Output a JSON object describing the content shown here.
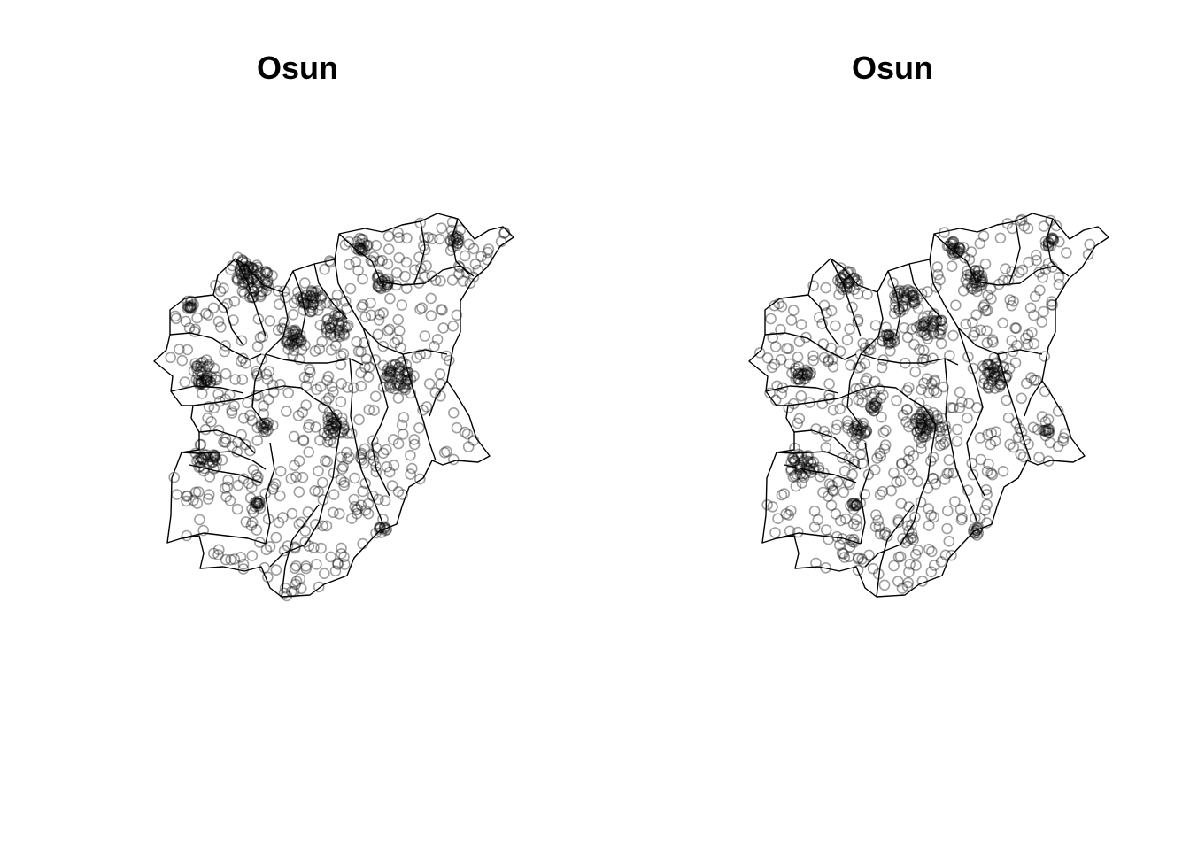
{
  "maps": [
    {
      "title": "Osun",
      "clusters": [
        [
          286,
          315,
          16,
          22
        ],
        [
          272,
          300,
          6,
          10
        ],
        [
          232,
          420,
          12,
          16
        ],
        [
          234,
          522,
          8,
          12
        ],
        [
          352,
          340,
          10,
          14
        ],
        [
          380,
          368,
          10,
          14
        ],
        [
          332,
          382,
          8,
          10
        ],
        [
          452,
          424,
          12,
          16
        ],
        [
          378,
          480,
          9,
          12
        ],
        [
          514,
          272,
          4,
          6
        ],
        [
          432,
          318,
          6,
          8
        ],
        [
          408,
          276,
          6,
          8
        ],
        [
          300,
          482,
          4,
          6
        ],
        [
          290,
          570,
          3,
          4
        ],
        [
          432,
          598,
          3,
          5
        ],
        [
          214,
          344,
          4,
          5
        ]
      ],
      "scatter_count": 520
    },
    {
      "title": "Osun",
      "clusters": [
        [
          958,
          318,
          8,
          12
        ],
        [
          1022,
          340,
          10,
          14
        ],
        [
          1052,
          368,
          10,
          14
        ],
        [
          1004,
          382,
          6,
          8
        ],
        [
          1122,
          424,
          12,
          16
        ],
        [
          1048,
          480,
          14,
          18
        ],
        [
          906,
          422,
          6,
          10
        ],
        [
          906,
          526,
          10,
          14
        ],
        [
          972,
          484,
          6,
          8
        ],
        [
          1100,
          316,
          8,
          12
        ],
        [
          1186,
          274,
          4,
          6
        ],
        [
          1078,
          280,
          6,
          8
        ],
        [
          1104,
          600,
          3,
          5
        ],
        [
          964,
          572,
          3,
          4
        ],
        [
          988,
          460,
          3,
          5
        ],
        [
          1182,
          488,
          3,
          5
        ]
      ],
      "scatter_count": 520
    }
  ]
}
